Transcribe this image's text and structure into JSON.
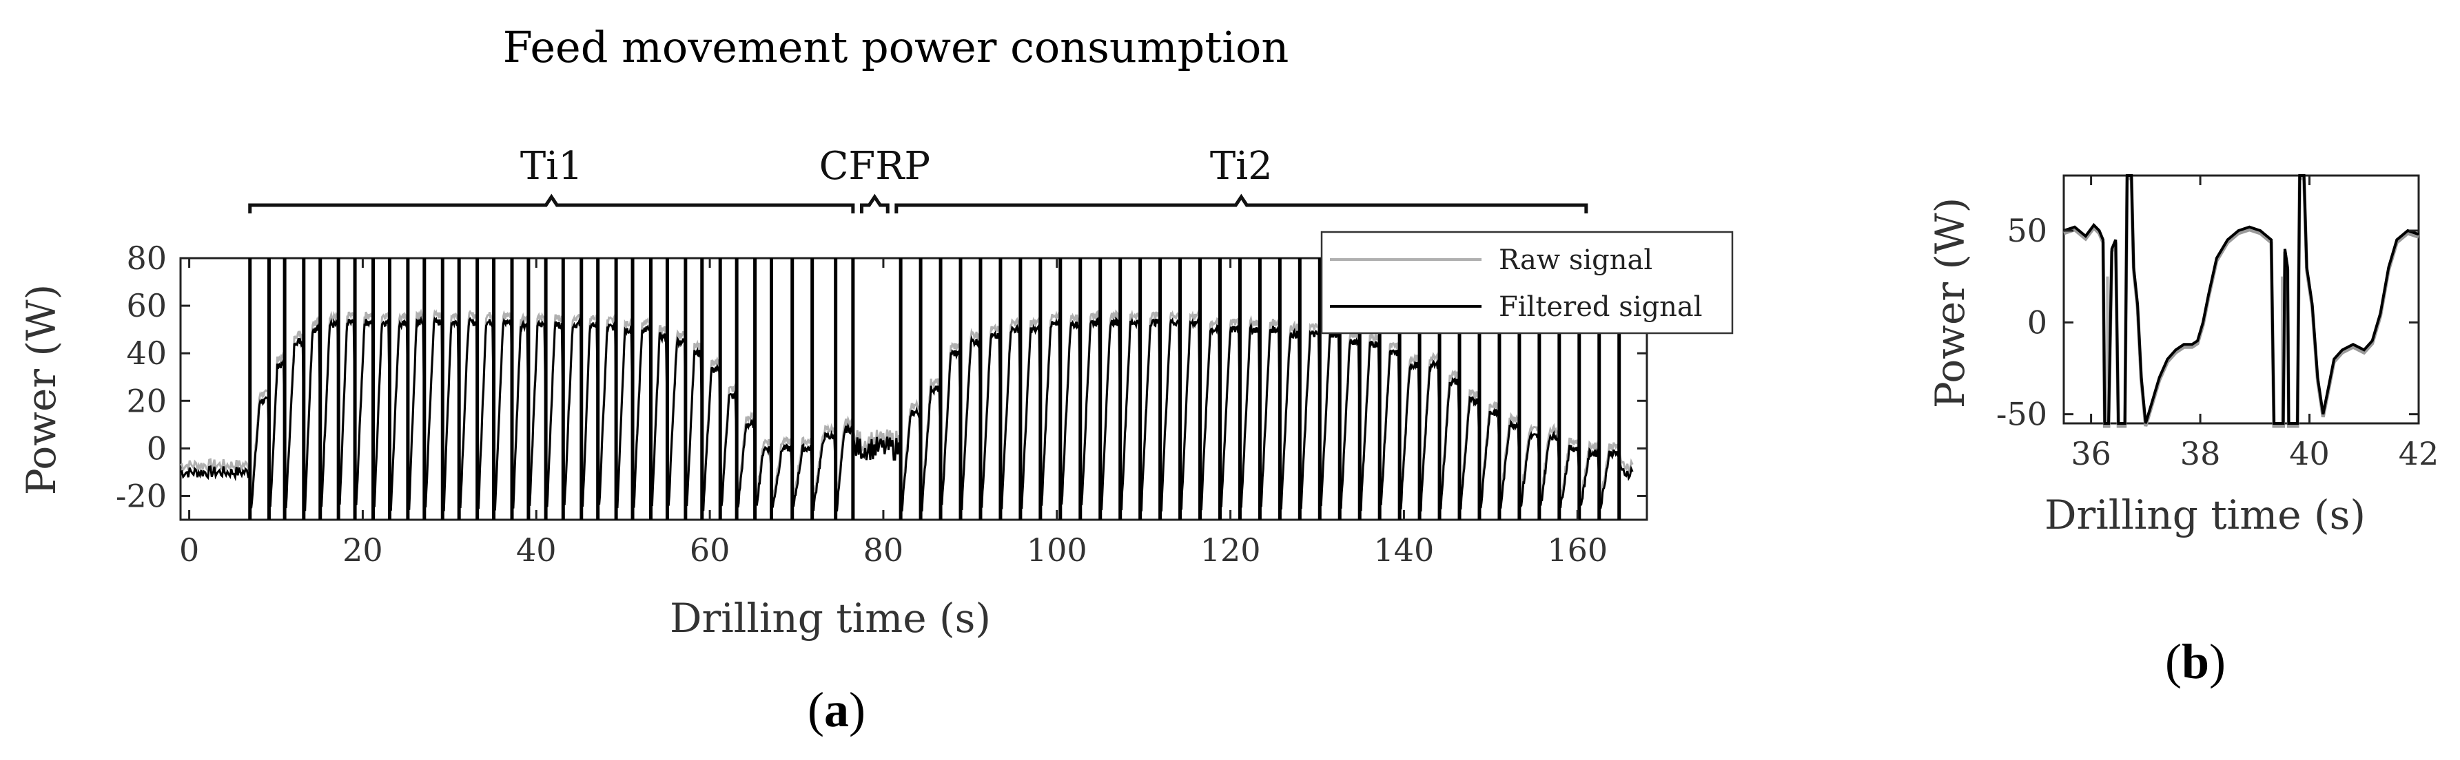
{
  "chart_data": [
    {
      "type": "line",
      "panel": "(a)",
      "title": "Feed movement power consumption",
      "xlabel": "Drilling time (s)",
      "ylabel": "Power (W)",
      "xlim": [
        -1,
        168
      ],
      "ylim": [
        -30,
        80
      ],
      "xticks": [
        0,
        20,
        40,
        60,
        80,
        100,
        120,
        140,
        160
      ],
      "yticks": [
        80,
        60,
        40,
        20,
        0,
        -20
      ],
      "legend_position": "top-right",
      "series": [
        {
          "name": "Raw signal",
          "color": "#b0b0b0"
        },
        {
          "name": "Filtered signal",
          "color": "#000000"
        }
      ],
      "phases": [
        {
          "label": "Ti1",
          "start": 7,
          "end": 76.5
        },
        {
          "label": "CFRP",
          "start": 77.5,
          "end": 80.5
        },
        {
          "label": "Ti2",
          "start": 81.5,
          "end": 161
        }
      ],
      "spike_times": [
        7,
        9.2,
        11,
        13.2,
        15.1,
        17.2,
        19.1,
        21.2,
        23.1,
        25.2,
        27.1,
        29.2,
        31.1,
        33.2,
        35.1,
        37.2,
        39.1,
        41.1,
        43.1,
        45.2,
        47.1,
        49.2,
        51.1,
        53.2,
        55.1,
        57.2,
        59.1,
        61.2,
        63.1,
        65.2,
        67.1,
        69.5,
        71.8,
        74.5,
        76.5,
        82,
        84.3,
        86.6,
        88.9,
        91.2,
        93.5,
        95.8,
        98.1,
        100.4,
        102.7,
        105,
        107.3,
        109.6,
        111.9,
        114.2,
        116.5,
        118.8,
        121.1,
        123.4,
        125.7,
        128,
        130.3,
        132.6,
        134.9,
        137.2,
        139.5,
        141.8,
        144.1,
        146.4,
        148.7,
        151,
        153.3,
        155.6,
        157.9,
        160.2,
        162.5,
        164.8
      ],
      "plateau_levels": [
        20,
        35,
        45,
        50,
        52,
        53,
        53,
        53,
        52,
        53,
        53,
        53,
        53,
        53,
        53,
        52,
        52,
        52,
        52,
        52,
        51,
        50,
        50,
        47,
        45,
        40,
        33,
        22,
        10,
        0,
        0,
        0,
        5,
        8,
        10,
        15,
        25,
        40,
        45,
        47,
        50,
        50,
        52,
        52,
        53,
        53,
        53,
        53,
        53,
        53,
        50,
        50,
        50,
        50,
        48,
        48,
        48,
        45,
        44,
        40,
        35,
        35,
        28,
        20,
        15,
        10,
        5,
        5,
        0,
        -2
      ],
      "baseline_levels": {
        "idle_start": -10,
        "cfrp": 0,
        "idle_end": -10
      }
    },
    {
      "type": "line",
      "panel": "(b)",
      "xlabel": "Drilling time (s)",
      "ylabel": "Power (W)",
      "xlim": [
        35.5,
        42
      ],
      "ylim": [
        -55,
        80
      ],
      "xticks": [
        36,
        38,
        40,
        42
      ],
      "yticks": [
        50,
        0,
        -50
      ],
      "points": [
        [
          35.5,
          50
        ],
        [
          35.7,
          52
        ],
        [
          35.9,
          47
        ],
        [
          36.05,
          53
        ],
        [
          36.15,
          50
        ],
        [
          36.22,
          45
        ],
        [
          36.25,
          -55
        ],
        [
          36.32,
          -55
        ],
        [
          36.38,
          40
        ],
        [
          36.45,
          45
        ],
        [
          36.5,
          -55
        ],
        [
          36.62,
          -55
        ],
        [
          36.66,
          80
        ],
        [
          36.74,
          80
        ],
        [
          36.78,
          30
        ],
        [
          36.85,
          10
        ],
        [
          36.92,
          -30
        ],
        [
          37.0,
          -55
        ],
        [
          37.1,
          -45
        ],
        [
          37.25,
          -30
        ],
        [
          37.4,
          -20
        ],
        [
          37.55,
          -15
        ],
        [
          37.7,
          -12
        ],
        [
          37.85,
          -12
        ],
        [
          37.95,
          -10
        ],
        [
          38.05,
          0
        ],
        [
          38.15,
          15
        ],
        [
          38.3,
          35
        ],
        [
          38.5,
          45
        ],
        [
          38.7,
          50
        ],
        [
          38.9,
          52
        ],
        [
          39.1,
          50
        ],
        [
          39.3,
          45
        ],
        [
          39.35,
          -55
        ],
        [
          39.52,
          -55
        ],
        [
          39.55,
          40
        ],
        [
          39.6,
          30
        ],
        [
          39.62,
          -55
        ],
        [
          39.78,
          -55
        ],
        [
          39.82,
          80
        ],
        [
          39.9,
          80
        ],
        [
          39.95,
          30
        ],
        [
          40.05,
          10
        ],
        [
          40.15,
          -30
        ],
        [
          40.25,
          -50
        ],
        [
          40.35,
          -35
        ],
        [
          40.45,
          -20
        ],
        [
          40.6,
          -15
        ],
        [
          40.8,
          -12
        ],
        [
          41.0,
          -15
        ],
        [
          41.15,
          -10
        ],
        [
          41.3,
          5
        ],
        [
          41.45,
          30
        ],
        [
          41.6,
          45
        ],
        [
          41.8,
          50
        ],
        [
          42.0,
          48
        ]
      ],
      "raw_spikes": [
        [
          36.3,
          25
        ],
        [
          39.5,
          25
        ]
      ]
    }
  ]
}
